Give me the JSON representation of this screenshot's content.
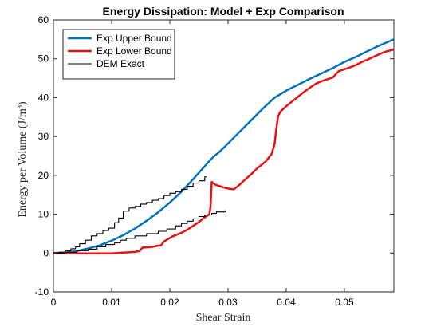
{
  "chart_data": {
    "type": "line",
    "title": "Energy Dissipation: Model + Exp Comparison",
    "xlabel": "Shear Strain",
    "ylabel": "Energy per Volume (J/m³)",
    "xlim": [
      0,
      0.0585
    ],
    "ylim": [
      -10,
      60
    ],
    "xticks": [
      0,
      0.01,
      0.02,
      0.03,
      0.04,
      0.05
    ],
    "xtick_labels": [
      "0",
      "0.01",
      "0.02",
      "0.03",
      "0.04",
      "0.05"
    ],
    "yticks": [
      -10,
      0,
      10,
      20,
      30,
      40,
      50,
      60
    ],
    "ytick_labels": [
      "-10",
      "0",
      "10",
      "20",
      "30",
      "40",
      "50",
      "60"
    ],
    "grid": false,
    "legend_position": "top-left",
    "series": [
      {
        "name": "Exp Upper Bound",
        "color": "#0072BD",
        "width": 2.5,
        "step": false,
        "points": [
          [
            0,
            0
          ],
          [
            0.002,
            0.1
          ],
          [
            0.004,
            0.5
          ],
          [
            0.006,
            1.2
          ],
          [
            0.008,
            2.0
          ],
          [
            0.01,
            3.2
          ],
          [
            0.012,
            4.6
          ],
          [
            0.014,
            6.3
          ],
          [
            0.016,
            8.3
          ],
          [
            0.018,
            10.5
          ],
          [
            0.02,
            13.0
          ],
          [
            0.022,
            15.8
          ],
          [
            0.024,
            19.0
          ],
          [
            0.0265,
            23.2
          ],
          [
            0.0275,
            24.8
          ],
          [
            0.0285,
            26.0
          ],
          [
            0.03,
            28.2
          ],
          [
            0.032,
            31.2
          ],
          [
            0.034,
            34.2
          ],
          [
            0.036,
            37.2
          ],
          [
            0.038,
            40.0
          ],
          [
            0.04,
            41.8
          ],
          [
            0.042,
            43.3
          ],
          [
            0.044,
            44.8
          ],
          [
            0.046,
            46.2
          ],
          [
            0.048,
            47.6
          ],
          [
            0.05,
            49.2
          ],
          [
            0.052,
            50.5
          ],
          [
            0.054,
            52.0
          ],
          [
            0.056,
            53.4
          ],
          [
            0.0585,
            55.0
          ]
        ]
      },
      {
        "name": "Exp Lower Bound",
        "color": "#E81010",
        "width": 2.5,
        "step": false,
        "points": [
          [
            0,
            0
          ],
          [
            0.005,
            -0.1
          ],
          [
            0.01,
            -0.1
          ],
          [
            0.012,
            0.1
          ],
          [
            0.014,
            0.3
          ],
          [
            0.0148,
            0.5
          ],
          [
            0.0153,
            1.4
          ],
          [
            0.017,
            1.6
          ],
          [
            0.0185,
            2.0
          ],
          [
            0.019,
            3.0
          ],
          [
            0.0205,
            4.3
          ],
          [
            0.022,
            5.2
          ],
          [
            0.023,
            6.0
          ],
          [
            0.024,
            7.0
          ],
          [
            0.025,
            8.0
          ],
          [
            0.026,
            9.2
          ],
          [
            0.0268,
            10.0
          ],
          [
            0.027,
            12.0
          ],
          [
            0.0272,
            18.3
          ],
          [
            0.0278,
            17.6
          ],
          [
            0.029,
            17.0
          ],
          [
            0.03,
            16.6
          ],
          [
            0.031,
            16.4
          ],
          [
            0.032,
            17.6
          ],
          [
            0.033,
            19.0
          ],
          [
            0.034,
            20.3
          ],
          [
            0.035,
            21.8
          ],
          [
            0.0365,
            23.6
          ],
          [
            0.0375,
            25.5
          ],
          [
            0.038,
            28.0
          ],
          [
            0.0383,
            32.0
          ],
          [
            0.0386,
            35.2
          ],
          [
            0.039,
            36.4
          ],
          [
            0.04,
            37.8
          ],
          [
            0.041,
            39.0
          ],
          [
            0.042,
            40.2
          ],
          [
            0.043,
            41.4
          ],
          [
            0.044,
            42.5
          ],
          [
            0.045,
            43.5
          ],
          [
            0.046,
            44.2
          ],
          [
            0.047,
            44.7
          ],
          [
            0.048,
            45.2
          ],
          [
            0.0485,
            46.0
          ],
          [
            0.049,
            46.8
          ],
          [
            0.05,
            47.3
          ],
          [
            0.051,
            47.8
          ],
          [
            0.052,
            48.4
          ],
          [
            0.053,
            49.2
          ],
          [
            0.054,
            49.8
          ],
          [
            0.055,
            50.5
          ],
          [
            0.056,
            51.2
          ],
          [
            0.057,
            51.8
          ],
          [
            0.0585,
            52.4
          ]
        ]
      },
      {
        "name": "DEM Exact",
        "color": "#000000",
        "width": 1.1,
        "step": true,
        "points": [
          [
            0,
            0
          ],
          [
            0.001,
            0.2
          ],
          [
            0.002,
            0.6
          ],
          [
            0.003,
            1.1
          ],
          [
            0.0038,
            1.6
          ],
          [
            0.0045,
            2.4
          ],
          [
            0.0055,
            3.3
          ],
          [
            0.0065,
            4.4
          ],
          [
            0.0075,
            5.0
          ],
          [
            0.0085,
            5.8
          ],
          [
            0.0095,
            6.4
          ],
          [
            0.0105,
            7.8
          ],
          [
            0.0112,
            9.0
          ],
          [
            0.012,
            10.8
          ],
          [
            0.013,
            11.6
          ],
          [
            0.014,
            12.0
          ],
          [
            0.015,
            12.6
          ],
          [
            0.016,
            13.0
          ],
          [
            0.017,
            13.6
          ],
          [
            0.018,
            14.0
          ],
          [
            0.019,
            14.8
          ],
          [
            0.02,
            15.4
          ],
          [
            0.021,
            15.8
          ],
          [
            0.022,
            16.4
          ],
          [
            0.023,
            17.2
          ],
          [
            0.024,
            18.0
          ],
          [
            0.025,
            18.6
          ],
          [
            0.026,
            19.6
          ],
          [
            0.0262,
            19.8
          ]
        ]
      },
      {
        "name": "",
        "color": "#000000",
        "width": 1.1,
        "step": true,
        "points": [
          [
            0,
            0
          ],
          [
            0.002,
            0.2
          ],
          [
            0.004,
            0.6
          ],
          [
            0.006,
            1.0
          ],
          [
            0.0075,
            1.6
          ],
          [
            0.009,
            2.2
          ],
          [
            0.0105,
            2.6
          ],
          [
            0.0115,
            3.3
          ],
          [
            0.0125,
            3.8
          ],
          [
            0.014,
            4.4
          ],
          [
            0.016,
            5.0
          ],
          [
            0.018,
            5.6
          ],
          [
            0.0195,
            6.2
          ],
          [
            0.021,
            7.0
          ],
          [
            0.022,
            7.6
          ],
          [
            0.023,
            8.2
          ],
          [
            0.024,
            8.8
          ],
          [
            0.025,
            9.4
          ],
          [
            0.026,
            9.8
          ],
          [
            0.0272,
            10.2
          ],
          [
            0.028,
            10.6
          ],
          [
            0.0295,
            11.0
          ]
        ]
      }
    ]
  }
}
